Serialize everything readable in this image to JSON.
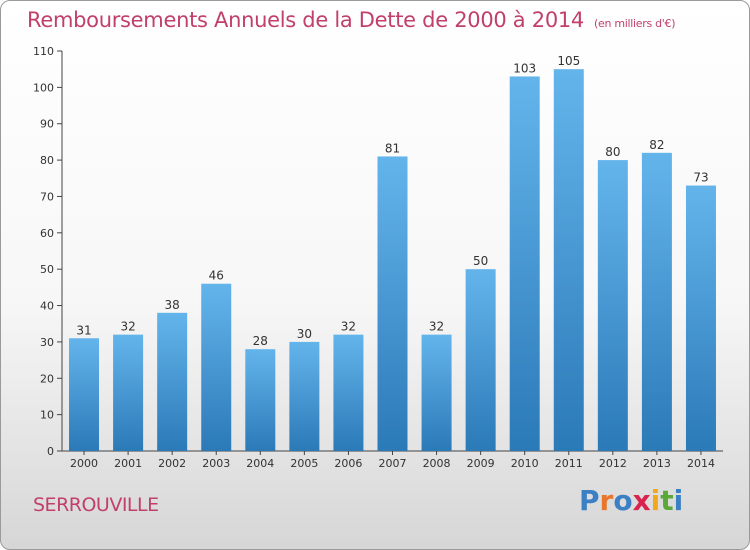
{
  "title": "Remboursements Annuels de la Dette de 2000 à 2014",
  "unit": "(en milliers d'€)",
  "town": "SERROUVILLE",
  "logo": {
    "letters": [
      "P",
      "r",
      "o",
      "x",
      "i",
      "t",
      "i"
    ],
    "colors": [
      "#3b7fc4",
      "#e8762c",
      "#3b7fc4",
      "#d9234e",
      "#f2a81d",
      "#5aa83a",
      "#3b7fc4"
    ]
  },
  "colors": {
    "title": "#c0406b",
    "bar_top": "#64b4ec",
    "bar_bottom": "#2b7ab8"
  },
  "chart_data": {
    "type": "bar",
    "title": "Remboursements Annuels de la Dette de 2000 à 2014",
    "categories": [
      "2000",
      "2001",
      "2002",
      "2003",
      "2004",
      "2005",
      "2006",
      "2007",
      "2008",
      "2009",
      "2010",
      "2011",
      "2012",
      "2013",
      "2014"
    ],
    "values": [
      31,
      32,
      38,
      46,
      28,
      30,
      32,
      81,
      32,
      50,
      103,
      105,
      80,
      82,
      73
    ],
    "ylim": [
      0,
      110
    ],
    "yticks": [
      0,
      10,
      20,
      30,
      40,
      50,
      60,
      70,
      80,
      90,
      100,
      110
    ],
    "grid": false,
    "legend": "none"
  }
}
